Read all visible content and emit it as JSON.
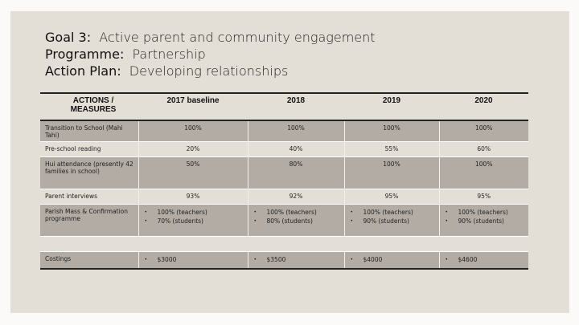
{
  "title": {
    "goal_label": "Goal 3:",
    "goal_value": "Active parent and community engagement",
    "programme_label": "Programme:",
    "programme_value": "Partnership",
    "plan_label": "Action Plan:",
    "plan_value": "Developing relationships"
  },
  "table": {
    "headers": [
      "ACTIONS / MEASURES",
      "2017 baseline",
      "2018",
      "2019",
      "2020"
    ],
    "rows": [
      {
        "label": "Transition to School (Mahi Tahi)",
        "values": [
          "100%",
          "100%",
          "100%",
          "100%"
        ]
      },
      {
        "label": "Pre-school reading",
        "values": [
          "20%",
          "40%",
          "55%",
          "60%"
        ]
      },
      {
        "label": "Hui attendance (presently 42 families in school)",
        "values": [
          "50%",
          "80%",
          "100%",
          "100%"
        ]
      },
      {
        "label": "Parent interviews",
        "values": [
          "93%",
          "92%",
          "95%",
          "95%"
        ]
      },
      {
        "label": "Parish Mass & Confirmation programme",
        "values": [
          [
            "100% (teachers)",
            "70% (students)"
          ],
          [
            "100% (teachers)",
            "80% (students)"
          ],
          [
            "100% (teachers)",
            "90% (students)"
          ],
          [
            "100% (teachers)",
            "90% (students)"
          ]
        ]
      },
      {
        "label": "Costings",
        "values": [
          "$3000",
          "$3500",
          "$4000",
          "$4600"
        ]
      }
    ]
  }
}
